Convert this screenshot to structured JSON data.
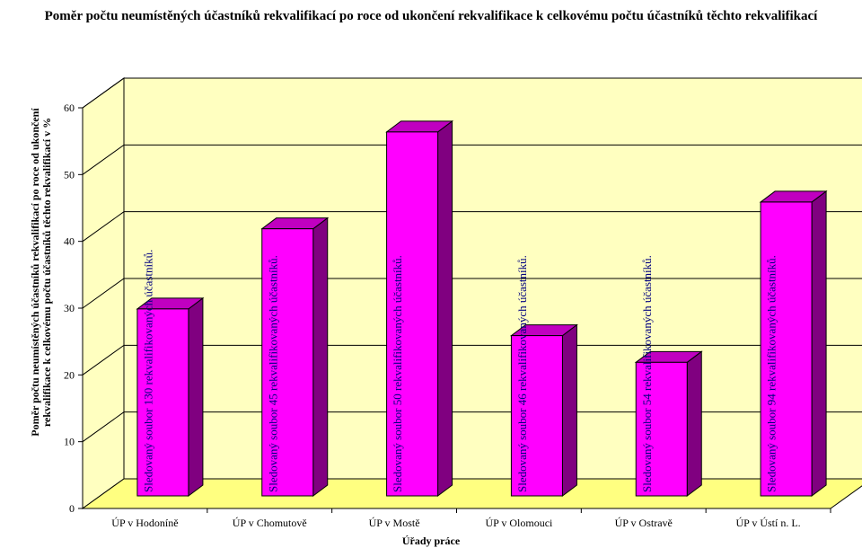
{
  "chart_data": {
    "type": "bar",
    "title": "Poměr počtu neumístěných účastníků rekvalifikací po roce od ukončení rekvalifikace k celkovému počtu účastníků těchto rekvalifikací",
    "ylabel": "Poměr počtu neumístěných účastníků rekvalifikací po roce od ukončení rekvalifikace k celkovému počtu účastníků těchto rekvalifikací v %",
    "xlabel": "Úřady práce",
    "ylim": [
      0,
      60
    ],
    "yticks": [
      "0",
      "10",
      "20",
      "30",
      "40",
      "50",
      "60"
    ],
    "grid": true,
    "style": "3d",
    "categories": [
      "ÚP v Hodoníně",
      "ÚP v Chomutově",
      "ÚP v Mostě",
      "ÚP v Olomouci",
      "ÚP v Ostravě",
      "ÚP v Ústí n. L."
    ],
    "values": [
      28,
      40,
      54.5,
      24,
      20,
      44
    ],
    "bar_labels": [
      "Sledovaný soubor 130 rekvalifikovaných účastníků.",
      "Sledovaný soubor 45 rekvalifikovaných účastníků.",
      "Sledovaný soubor 50 rekvalifikovaných účastníků.",
      "Sledovaný soubor 46 rekvalifikovaných účastníků.",
      "Sledovaný soubor 54 rekvalifikovaných účastníků.",
      "Sledovaný soubor 94 rekvalifikovaných účastníků."
    ],
    "colors": {
      "bar_front": "#ff00ff",
      "bar_side": "#800080",
      "bar_top": "#c000c0",
      "wall": "#ffffc0",
      "floor": "#ffff80",
      "label_text": "#000080"
    }
  }
}
